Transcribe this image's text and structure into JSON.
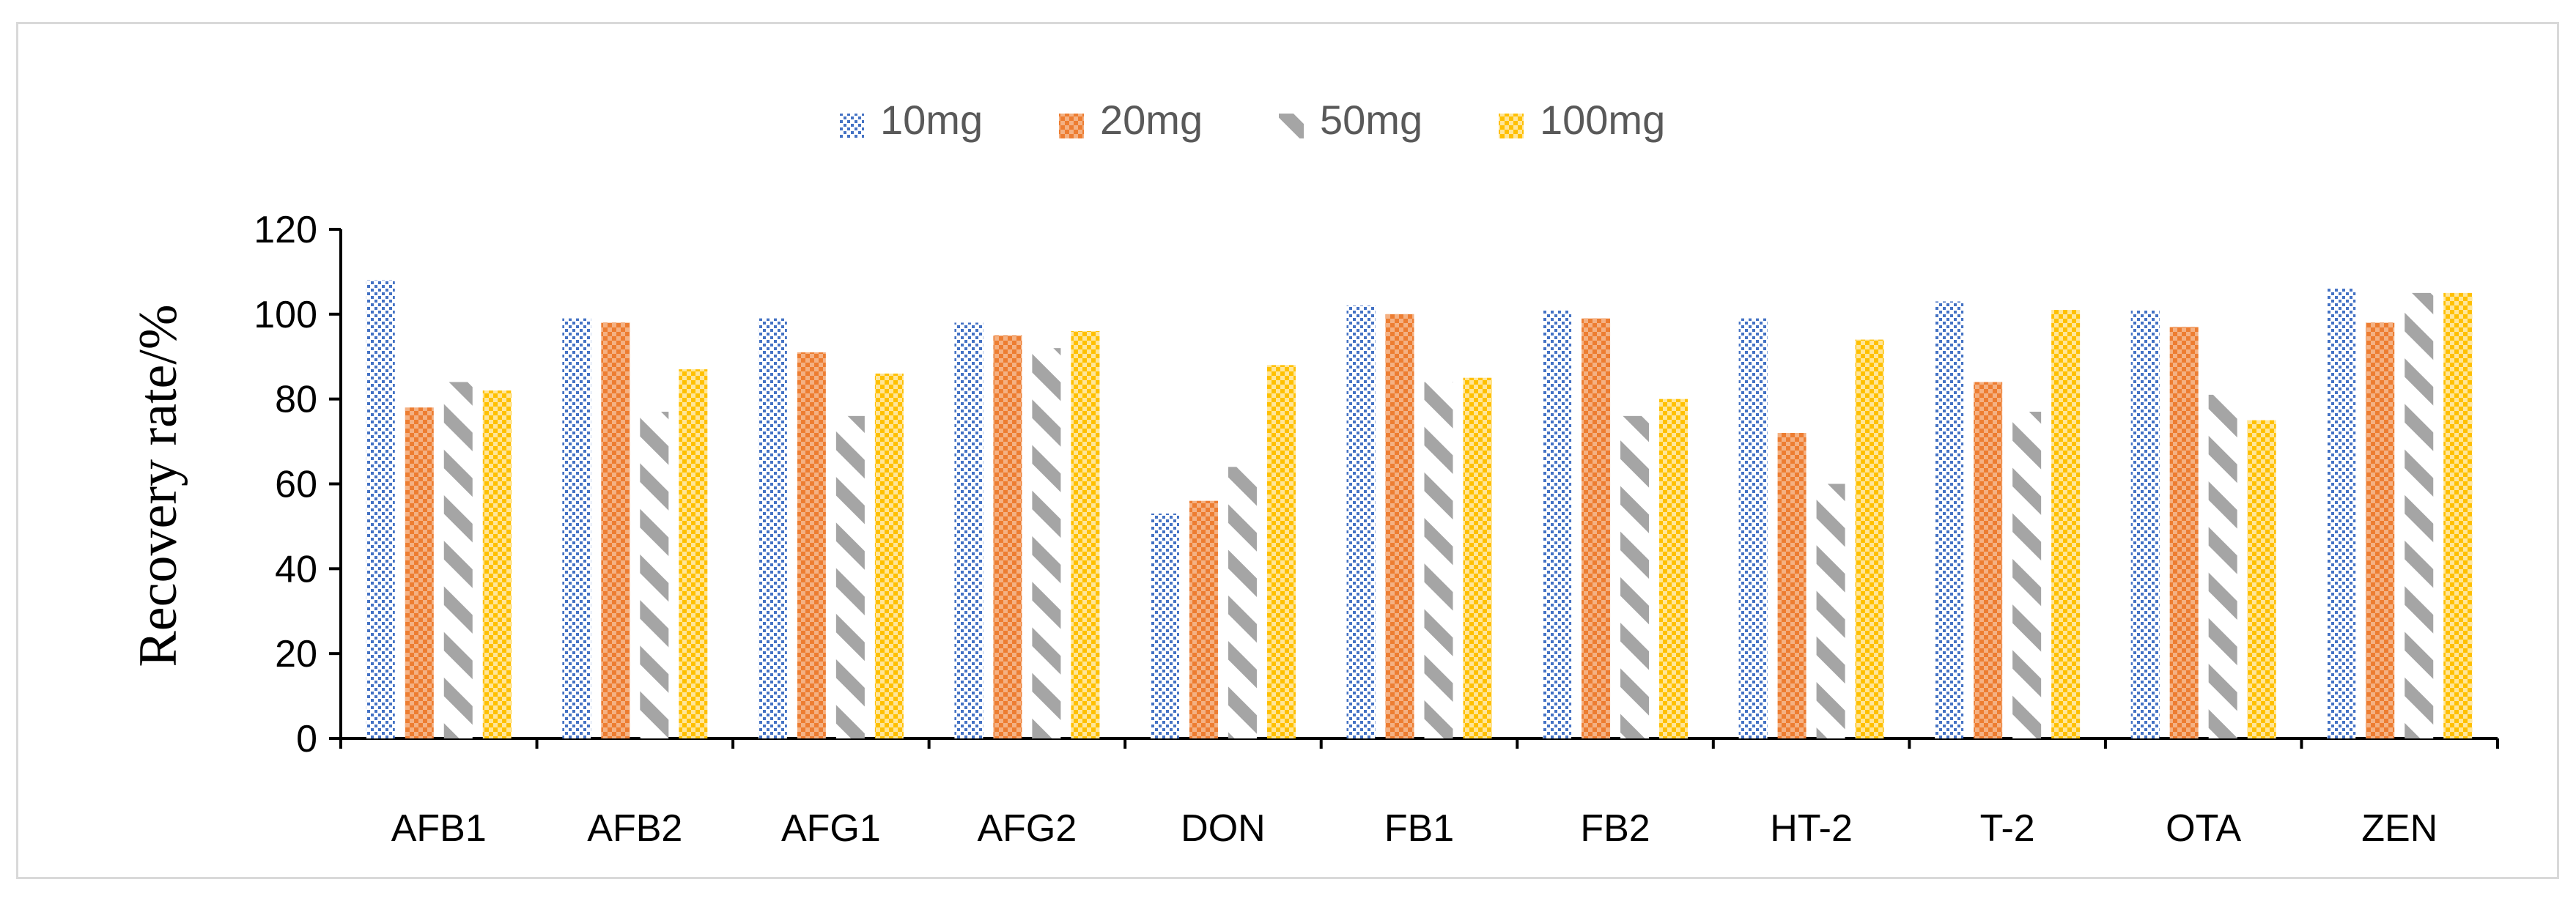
{
  "chart_data": {
    "type": "bar",
    "title": "",
    "xlabel": "",
    "ylabel": "Recovery rate/%",
    "ylim": [
      0,
      120
    ],
    "yticks": [
      0,
      20,
      40,
      60,
      80,
      100,
      120
    ],
    "grid": false,
    "legend_position": "top-center",
    "categories": [
      "AFB1",
      "AFB2",
      "AFG1",
      "AFG2",
      "DON",
      "FB1",
      "FB2",
      "HT-2",
      "T-2",
      "OTA",
      "ZEN"
    ],
    "series": [
      {
        "name": "10mg",
        "pattern": "dots",
        "color": "#4472c4",
        "values": [
          108,
          99,
          99,
          98,
          53,
          102,
          101,
          99,
          103,
          101,
          106
        ]
      },
      {
        "name": "20mg",
        "pattern": "checker",
        "color": "#ed7d31",
        "values": [
          78,
          98,
          91,
          95,
          56,
          100,
          99,
          72,
          84,
          97,
          98
        ]
      },
      {
        "name": "50mg",
        "pattern": "diagonal",
        "color": "#a5a5a5",
        "values": [
          84,
          77,
          76,
          92,
          64,
          84,
          76,
          60,
          77,
          81,
          105
        ]
      },
      {
        "name": "100mg",
        "pattern": "checker-fine",
        "color": "#ffc000",
        "values": [
          82,
          87,
          86,
          96,
          88,
          85,
          80,
          94,
          101,
          75,
          105
        ]
      }
    ]
  }
}
